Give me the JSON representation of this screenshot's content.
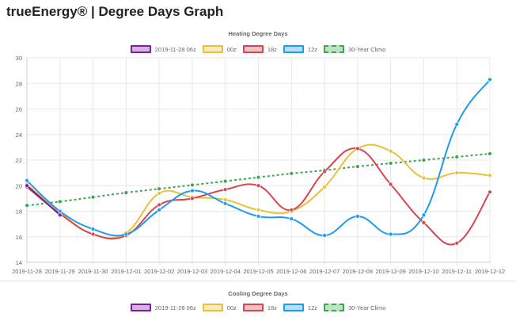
{
  "app": {
    "title": "trueEnergy® | Degree Days Graph"
  },
  "charts": {
    "heating": {
      "title": "Heating Degree Days",
      "legend": [
        "2019-11-28 06z",
        "00z",
        "18z",
        "12z",
        "30-Year Climo"
      ]
    },
    "cooling": {
      "title": "Cooling Degree Days",
      "legend": [
        "2019-11-28 06z",
        "00z",
        "18z",
        "12z",
        "30-Year Climo"
      ]
    }
  },
  "colors": {
    "06z": "#7b1fa2",
    "00z": "#e8c13a",
    "18z": "#d64550",
    "12z": "#1e9bf0",
    "climo": "#3aa84a",
    "grid": "#e8e8e8"
  },
  "chart_data": [
    {
      "type": "line",
      "title": "Heating Degree Days",
      "x": [
        "2019-11-28",
        "2019-11-29",
        "2019-11-30",
        "2019-12-01",
        "2019-12-02",
        "2019-12-03",
        "2019-12-04",
        "2019-12-05",
        "2019-12-06",
        "2019-12-07",
        "2019-12-08",
        "2019-12-09",
        "2019-12-10",
        "2019-12-11",
        "2019-12-12"
      ],
      "ylim": [
        14,
        30
      ],
      "yticks": [
        14,
        16,
        18,
        20,
        22,
        24,
        26,
        28,
        30
      ],
      "grid": true,
      "legend_position": "top",
      "series": [
        {
          "name": "2019-11-28 06z",
          "key": "06z",
          "dashed": false,
          "values": [
            20.0,
            17.7,
            null,
            null,
            null,
            null,
            null,
            null,
            null,
            null,
            null,
            null,
            null,
            null,
            null
          ]
        },
        {
          "name": "00z",
          "key": "00z",
          "dashed": false,
          "values": [
            20.1,
            17.9,
            16.2,
            16.3,
            19.4,
            19.1,
            18.9,
            18.1,
            18.0,
            19.9,
            22.9,
            22.7,
            20.6,
            21.0,
            20.8
          ]
        },
        {
          "name": "18z",
          "key": "18z",
          "dashed": false,
          "values": [
            19.9,
            17.8,
            16.2,
            16.1,
            18.5,
            19.0,
            19.7,
            20.0,
            18.1,
            21.1,
            22.9,
            20.1,
            17.1,
            15.5,
            19.5
          ]
        },
        {
          "name": "12z",
          "key": "12z",
          "dashed": false,
          "values": [
            20.4,
            18.0,
            16.6,
            16.2,
            18.1,
            19.6,
            18.6,
            17.6,
            17.4,
            16.1,
            17.6,
            16.2,
            17.7,
            24.8,
            28.3
          ]
        },
        {
          "name": "30-Year Climo",
          "key": "climo",
          "dashed": true,
          "values": [
            18.45,
            18.75,
            19.1,
            19.45,
            19.75,
            20.05,
            20.35,
            20.65,
            20.95,
            21.2,
            21.5,
            21.75,
            22.0,
            22.25,
            22.5
          ]
        }
      ]
    },
    {
      "type": "line",
      "title": "Cooling Degree Days",
      "legend_position": "top",
      "series": [
        {
          "name": "2019-11-28 06z",
          "key": "06z"
        },
        {
          "name": "00z",
          "key": "00z"
        },
        {
          "name": "18z",
          "key": "18z"
        },
        {
          "name": "12z",
          "key": "12z"
        },
        {
          "name": "30-Year Climo",
          "key": "climo"
        }
      ]
    }
  ]
}
